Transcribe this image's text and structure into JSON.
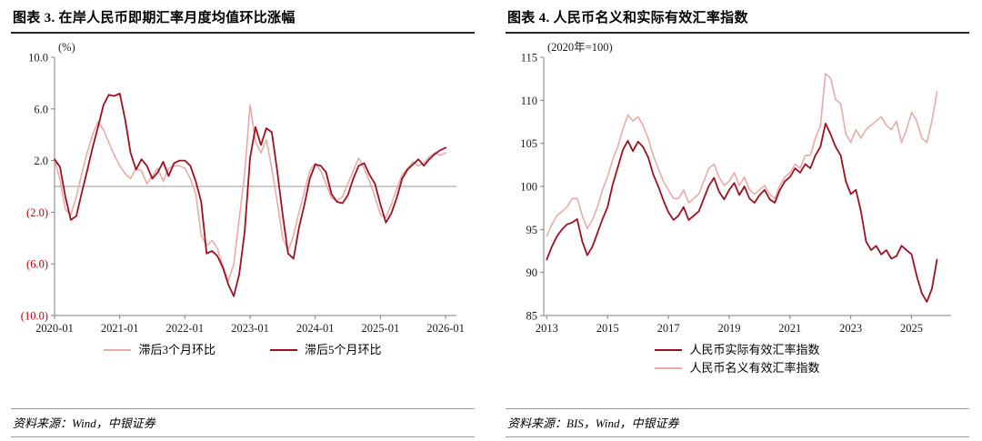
{
  "colors": {
    "dark_red": "#9e1020",
    "light_pink": "#e9aba6",
    "negative_label": "#c00000",
    "axis": "#7f7f7f",
    "divider": "#9a9a9a"
  },
  "left_panel": {
    "title": "图表 3. 在岸人民币即期汇率月度均值环比涨幅",
    "y_unit": "(%)",
    "legend": [
      {
        "label": "滞后3个月环比",
        "color_key": "light_pink"
      },
      {
        "label": "滞后5个月环比",
        "color_key": "dark_red"
      }
    ],
    "source": "资料来源：Wind，中银证券"
  },
  "right_panel": {
    "title": "图表 4. 人民币名义和实际有效汇率指数",
    "y_unit": "(2020年=100)",
    "legend": [
      {
        "label": "人民币实际有效汇率指数",
        "color_key": "dark_red"
      },
      {
        "label": "人民币名义有效汇率指数",
        "color_key": "light_pink"
      }
    ],
    "source": "资料来源：BIS，Wind，中银证券"
  },
  "chart_data": [
    {
      "type": "line",
      "title": "在岸人民币即期汇率月度均值环比涨幅",
      "xlabel": "",
      "ylabel": "%",
      "y_unit": "(%)",
      "ylim": [
        -10,
        10
      ],
      "yticks": [
        10,
        6,
        2,
        -2,
        -6,
        -10
      ],
      "ytick_labels": [
        "10.0",
        "6.0",
        "2.0",
        "(2.0)",
        "(6.0)",
        "(10.0)"
      ],
      "negative_red": true,
      "zero_line": true,
      "grid": false,
      "legend_position": "bottom",
      "x0": 0,
      "dx": 1,
      "xlim": [
        0,
        74
      ],
      "xticks": {
        "values": [
          0,
          12,
          24,
          36,
          48,
          60,
          72
        ],
        "labels": [
          "2020-01",
          "2021-01",
          "2022-01",
          "2023-01",
          "2024-01",
          "2025-01",
          "2026-01"
        ]
      },
      "series": [
        {
          "name": "滞后3个月环比",
          "color": "#e9aba6",
          "width": 1.6,
          "values": [
            2.1,
            0.5,
            -1.8,
            -2.2,
            -0.8,
            1.0,
            2.6,
            4.0,
            5.0,
            4.4,
            3.4,
            2.4,
            1.6,
            1.0,
            0.6,
            1.4,
            1.2,
            0.2,
            0.8,
            1.4,
            0.4,
            1.4,
            1.6,
            1.6,
            1.4,
            0.6,
            -0.6,
            -3.8,
            -4.6,
            -4.2,
            -4.8,
            -6.2,
            -7.3,
            -6.0,
            -2.5,
            1.0,
            6.3,
            3.5,
            2.6,
            3.6,
            1.4,
            -1.2,
            -4.0,
            -5.0,
            -3.8,
            -2.0,
            -0.4,
            1.2,
            1.8,
            1.2,
            0.2,
            -0.9,
            -1.1,
            -0.8,
            0.2,
            1.2,
            2.2,
            1.4,
            0.4,
            -0.8,
            -2.2,
            -2.4,
            -1.4,
            -0.2,
            0.9,
            1.4,
            1.9,
            1.6,
            1.8,
            2.3,
            2.6,
            2.4,
            2.6
          ]
        },
        {
          "name": "滞后5个月环比",
          "color": "#9e1020",
          "width": 1.8,
          "values": [
            2.1,
            1.5,
            -0.8,
            -2.6,
            -2.3,
            -0.5,
            1.2,
            3.0,
            4.6,
            6.3,
            7.1,
            7.0,
            7.2,
            5.2,
            2.6,
            1.3,
            2.1,
            1.6,
            0.6,
            1.1,
            1.9,
            0.8,
            1.8,
            2.0,
            2.0,
            1.6,
            0.4,
            -1.2,
            -5.2,
            -5.0,
            -5.4,
            -6.3,
            -7.6,
            -8.5,
            -6.8,
            -3.5,
            2.2,
            4.6,
            3.2,
            4.5,
            4.2,
            1.2,
            -2.2,
            -5.2,
            -5.6,
            -3.2,
            -1.4,
            0.6,
            1.7,
            1.6,
            1.1,
            -0.6,
            -1.2,
            -1.3,
            -0.7,
            0.6,
            1.6,
            1.8,
            0.9,
            0.2,
            -1.4,
            -2.8,
            -2.1,
            -0.9,
            0.6,
            1.3,
            1.7,
            2.1,
            1.6,
            2.1,
            2.5,
            2.8,
            3.0
          ]
        }
      ]
    },
    {
      "type": "line",
      "title": "人民币名义和实际有效汇率指数",
      "xlabel": "",
      "ylabel": "指数 (2020年=100)",
      "y_unit": "(2020年=100)",
      "ylim": [
        85,
        115
      ],
      "yticks": [
        115,
        110,
        105,
        100,
        95,
        90,
        85
      ],
      "ytick_labels": [
        "115",
        "110",
        "105",
        "100",
        "95",
        "90",
        "85"
      ],
      "negative_red": false,
      "zero_line": false,
      "grid": false,
      "legend_position": "bottom",
      "x0": 2013,
      "dx": 0.1667,
      "xlim": [
        2012.9,
        2026.3
      ],
      "xticks": {
        "values": [
          2013,
          2015,
          2017,
          2019,
          2021,
          2023,
          2025
        ],
        "labels": [
          "2013",
          "2015",
          "2017",
          "2019",
          "2021",
          "2023",
          "2025"
        ]
      },
      "series": [
        {
          "name": "人民币名义有效汇率指数",
          "color": "#e9aba6",
          "width": 1.6,
          "values": [
            94.2,
            95.6,
            96.6,
            97.1,
            97.6,
            98.6,
            98.6,
            96.6,
            95.1,
            96.1,
            97.6,
            99.6,
            101.1,
            103.1,
            104.6,
            106.6,
            108.3,
            107.6,
            108.1,
            107.1,
            105.6,
            103.6,
            102.1,
            100.6,
            99.6,
            98.6,
            98.6,
            99.6,
            98.1,
            98.6,
            99.1,
            100.6,
            102.1,
            102.6,
            101.1,
            100.1,
            100.6,
            101.6,
            100.1,
            101.1,
            99.6,
            99.1,
            99.6,
            100.1,
            99.1,
            98.6,
            100.1,
            101.1,
            101.6,
            102.6,
            102.1,
            103.6,
            103.6,
            105.6,
            107.1,
            113.1,
            112.6,
            110.1,
            109.6,
            106.1,
            105.1,
            106.6,
            105.6,
            106.6,
            107.1,
            107.6,
            108.1,
            107.1,
            106.6,
            107.6,
            105.1,
            106.6,
            108.6,
            107.6,
            105.6,
            105.1,
            107.6,
            111.0
          ]
        },
        {
          "name": "人民币实际有效汇率指数",
          "color": "#9e1020",
          "width": 1.8,
          "values": [
            91.5,
            93.0,
            94.2,
            95.0,
            95.6,
            95.8,
            96.2,
            93.6,
            92.0,
            93.0,
            94.6,
            96.2,
            97.6,
            100.2,
            102.2,
            104.2,
            105.3,
            104.1,
            105.2,
            104.6,
            103.4,
            101.4,
            100.0,
            98.4,
            97.0,
            96.1,
            96.6,
            97.6,
            96.1,
            96.6,
            97.1,
            98.6,
            100.1,
            101.0,
            99.4,
            98.5,
            99.6,
            100.4,
            99.0,
            100.0,
            98.6,
            98.1,
            99.0,
            99.6,
            98.5,
            98.1,
            99.6,
            100.6,
            101.1,
            102.1,
            101.6,
            102.6,
            102.1,
            103.6,
            104.6,
            107.3,
            106.1,
            104.6,
            103.6,
            100.6,
            99.1,
            99.6,
            97.1,
            93.6,
            92.6,
            93.1,
            92.1,
            92.6,
            91.6,
            91.9,
            93.1,
            92.6,
            92.1,
            89.6,
            87.6,
            86.6,
            88.1,
            91.5
          ]
        }
      ]
    }
  ]
}
